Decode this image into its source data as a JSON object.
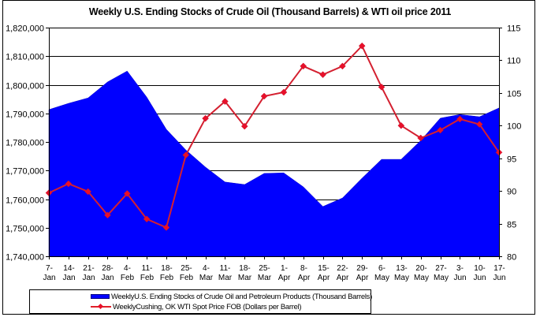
{
  "chart_data": {
    "type": "area",
    "title": "Weekly U.S. Ending Stocks of Crude Oil  (Thousand Barrels) & WTI oil price 2011",
    "xlabel": "",
    "ylabel": "",
    "y2label": "",
    "categories": [
      [
        "7-",
        "Jan"
      ],
      [
        "14-",
        "Jan"
      ],
      [
        "21-",
        "Jan"
      ],
      [
        "28-",
        "Jan"
      ],
      [
        "4-",
        "Feb"
      ],
      [
        "11-",
        "Feb"
      ],
      [
        "18-",
        "Feb"
      ],
      [
        "25-",
        "Feb"
      ],
      [
        "4-",
        "Mar"
      ],
      [
        "11-",
        "Mar"
      ],
      [
        "18-",
        "Mar"
      ],
      [
        "25-",
        "Mar"
      ],
      [
        "1-",
        "Apr"
      ],
      [
        "8-",
        "Apr"
      ],
      [
        "15-",
        "Apr"
      ],
      [
        "22-",
        "Apr"
      ],
      [
        "29-",
        "Apr"
      ],
      [
        "6-",
        "May"
      ],
      [
        "13-",
        "May"
      ],
      [
        "20-",
        "May"
      ],
      [
        "27-",
        "May"
      ],
      [
        "3-",
        "Jun"
      ],
      [
        "10-",
        "Jun"
      ],
      [
        "17-",
        "Jun"
      ]
    ],
    "ylim": [
      1740000,
      1820000
    ],
    "y_ticks": [
      1740000,
      1750000,
      1760000,
      1770000,
      1780000,
      1790000,
      1800000,
      1810000,
      1820000
    ],
    "y_tick_labels": [
      "1,740,000",
      "1,750,000",
      "1,760,000",
      "1,770,000",
      "1,780,000",
      "1,790,000",
      "1,800,000",
      "1,810,000",
      "1,820,000"
    ],
    "y2lim": [
      80,
      115
    ],
    "y2_ticks": [
      80,
      85,
      90,
      95,
      100,
      105,
      110,
      115
    ],
    "y2_tick_labels": [
      "80",
      "85",
      "90",
      "95",
      "100",
      "105",
      "110",
      "115"
    ],
    "grid": true,
    "legend_position": "bottom",
    "series": [
      {
        "name": "Weekly U.S. Ending Stocks of Crude Oil and Petroleum Products  (Thousand Barrels)",
        "legend_label": "WeeklyU.S. Ending Stocks of Crude Oil and Petroleum Products  (Thousand Barrels)",
        "type": "area",
        "axis": "left",
        "color": "#0000ff",
        "values": [
          1791300,
          1793500,
          1795400,
          1801000,
          1804800,
          1795700,
          1784400,
          1777200,
          1771200,
          1766000,
          1765100,
          1769000,
          1769200,
          1764300,
          1757400,
          1760400,
          1767300,
          1773900,
          1773900,
          1780500,
          1788300,
          1789600,
          1788800,
          1791900
        ]
      },
      {
        "name": "Weekly Cushing, OK WTI Spot Price FOB  (Dollars per Barrel)",
        "legend_label": "WeeklyCushing, OK WTI Spot Price FOB  (Dollars per Barrel)",
        "type": "line",
        "axis": "right",
        "color": "#d42030",
        "marker": "diamond",
        "values": [
          89.7,
          91.1,
          89.9,
          86.3,
          89.6,
          85.7,
          84.4,
          95.5,
          101.1,
          103.7,
          99.9,
          104.5,
          105.1,
          109.1,
          107.8,
          109.1,
          112.2,
          105.9,
          100.0,
          98.1,
          99.3,
          101.0,
          100.2,
          95.9
        ]
      }
    ]
  }
}
